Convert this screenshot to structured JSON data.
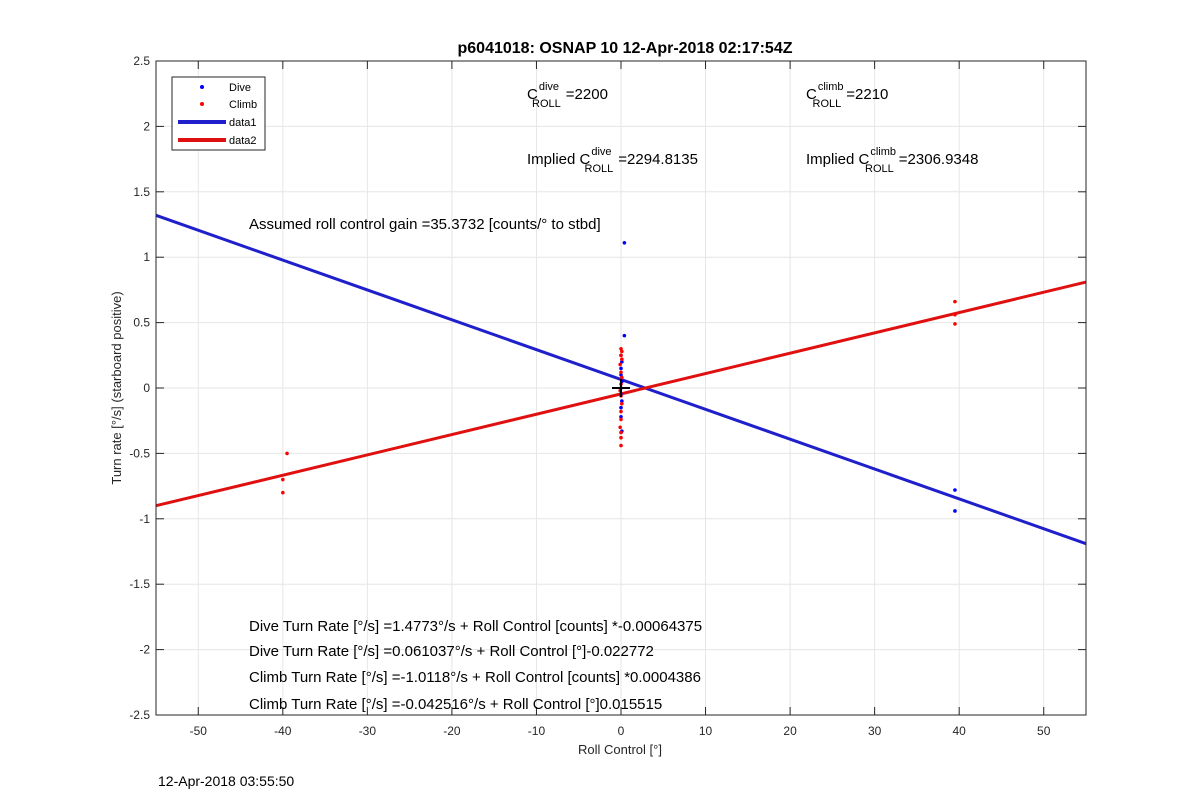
{
  "chart_data": {
    "type": "scatter",
    "title": "p6041018: OSNAP 10 12-Apr-2018 02:17:54Z",
    "xlabel": "Roll Control [°]",
    "ylabel": "Turn rate [°/s] (starboard positive)",
    "xlim": [
      -55,
      55
    ],
    "ylim": [
      -2.5,
      2.5
    ],
    "xticks": [
      -50,
      -40,
      -30,
      -20,
      -10,
      0,
      10,
      20,
      30,
      40,
      50
    ],
    "yticks": [
      -2.5,
      -2,
      -1.5,
      -1,
      -0.5,
      0,
      0.5,
      1,
      1.5,
      2,
      2.5
    ],
    "grid": true,
    "legend_position": "top-left",
    "legend": [
      "Dive",
      "Climb",
      "data1",
      "data2"
    ],
    "series": [
      {
        "name": "Dive",
        "kind": "points",
        "color": "#0000ff",
        "points": [
          [
            0.4,
            1.11
          ],
          [
            0.4,
            0.4
          ],
          [
            0.0,
            0.25
          ],
          [
            0.1,
            0.2
          ],
          [
            0.0,
            0.15
          ],
          [
            0.0,
            0.1
          ],
          [
            0.1,
            0.05
          ],
          [
            0.0,
            0.0
          ],
          [
            0.0,
            -0.05
          ],
          [
            0.1,
            -0.1
          ],
          [
            0.0,
            -0.15
          ],
          [
            0.0,
            -0.22
          ],
          [
            0.1,
            -0.33
          ],
          [
            39.5,
            -0.78
          ],
          [
            39.5,
            -0.94
          ]
        ]
      },
      {
        "name": "Climb",
        "kind": "points",
        "color": "#ff0000",
        "points": [
          [
            -39.5,
            -0.5
          ],
          [
            -40.0,
            -0.7
          ],
          [
            -40.0,
            -0.8
          ],
          [
            0.0,
            0.3
          ],
          [
            0.1,
            0.28
          ],
          [
            0.0,
            0.25
          ],
          [
            0.1,
            0.22
          ],
          [
            -0.1,
            0.18
          ],
          [
            0.0,
            0.12
          ],
          [
            0.1,
            0.08
          ],
          [
            0.0,
            0.03
          ],
          [
            -0.1,
            -0.02
          ],
          [
            0.0,
            -0.06
          ],
          [
            0.1,
            -0.12
          ],
          [
            0.0,
            -0.18
          ],
          [
            0.0,
            -0.24
          ],
          [
            -0.1,
            -0.3
          ],
          [
            0.0,
            -0.34
          ],
          [
            0.0,
            -0.38
          ],
          [
            0.0,
            -0.44
          ],
          [
            39.5,
            0.66
          ],
          [
            39.5,
            0.56
          ],
          [
            39.5,
            0.49
          ]
        ]
      },
      {
        "name": "data1",
        "kind": "line",
        "color": "#1f1fcc",
        "x": [
          -55,
          55
        ],
        "y": [
          1.32,
          -1.19
        ]
      },
      {
        "name": "data2",
        "kind": "line",
        "color": "#e01010",
        "x": [
          -55,
          55
        ],
        "y": [
          -0.9,
          0.81
        ]
      }
    ],
    "marker": {
      "x": 0,
      "y": 0,
      "symbol": "+"
    },
    "annotations": {
      "c_dive": {
        "base": "C",
        "sup": "dive",
        "sub": "ROLL",
        "value": "=2200"
      },
      "c_climb": {
        "base": "C",
        "sup": "climb",
        "sub": "ROLL",
        "value": "=2210"
      },
      "implied_dive": {
        "prefix": "Implied C",
        "sup": "dive",
        "sub": "ROLL",
        "value": "=2294.8135"
      },
      "implied_climb": {
        "prefix": "Implied C",
        "sup": "climb",
        "sub": "ROLL",
        "value": "=2306.9348"
      },
      "gain": "Assumed roll control gain =35.3732 [counts/° to stbd]",
      "equations": [
        "Dive Turn Rate [°/s] =1.4773°/s + Roll Control [counts] *-0.00064375",
        "Dive Turn Rate [°/s] =0.061037°/s + Roll Control [°]-0.022772",
        "Climb Turn Rate [°/s] =-1.0118°/s + Roll Control [counts] *0.0004386",
        "Climb Turn Rate [°/s] =-0.042516°/s + Roll Control [°]0.015515"
      ]
    }
  },
  "footer_timestamp": "12-Apr-2018 03:55:50"
}
